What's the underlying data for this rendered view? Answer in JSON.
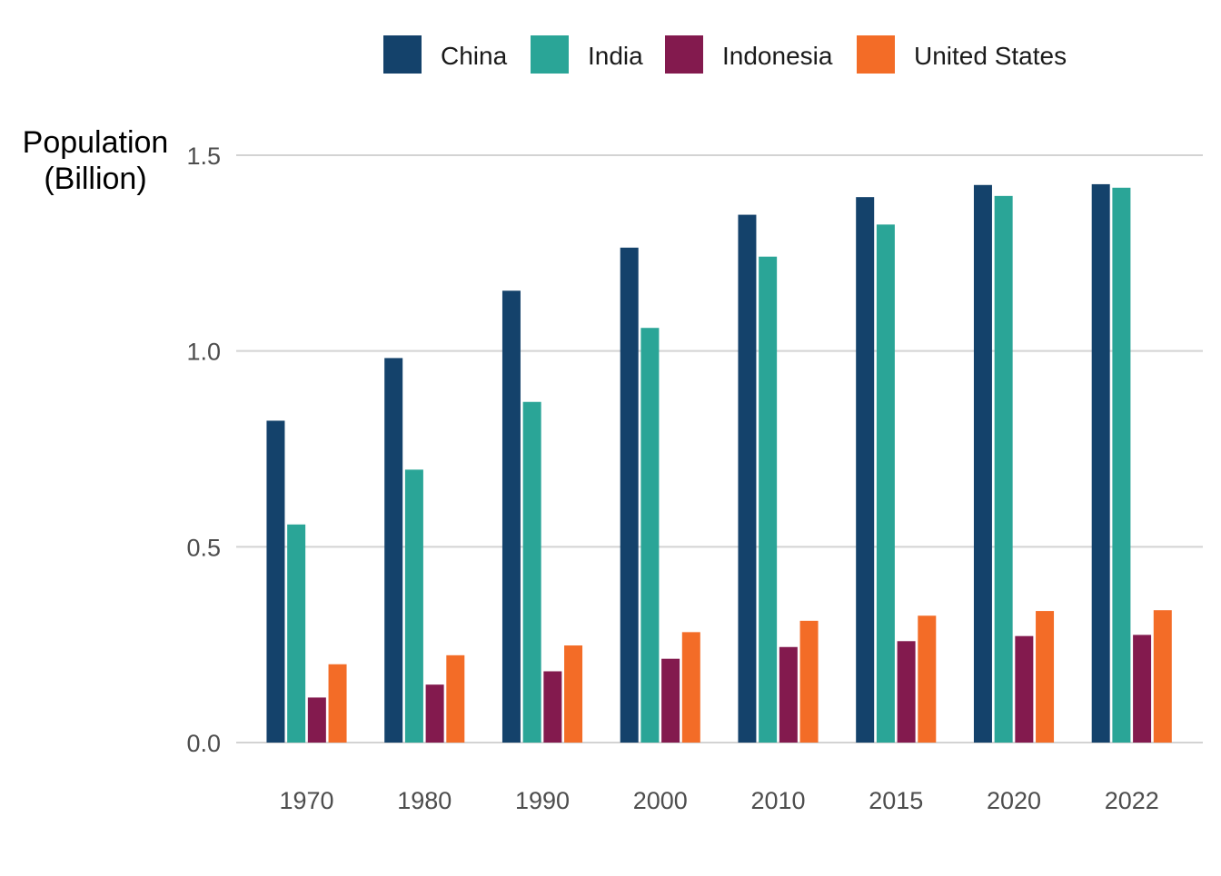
{
  "chart_data": {
    "type": "bar",
    "ylabel": "Population\n(Billion)",
    "xlabel": "",
    "categories": [
      "1970",
      "1980",
      "1990",
      "2000",
      "2010",
      "2015",
      "2020",
      "2022"
    ],
    "series": [
      {
        "name": "China",
        "color": "#14426b",
        "values": [
          0.822,
          0.982,
          1.154,
          1.264,
          1.348,
          1.393,
          1.424,
          1.426
        ]
      },
      {
        "name": "India",
        "color": "#2aa597",
        "values": [
          0.557,
          0.697,
          0.87,
          1.059,
          1.241,
          1.323,
          1.396,
          1.417
        ]
      },
      {
        "name": "Indonesia",
        "color": "#831a4e",
        "values": [
          0.115,
          0.148,
          0.182,
          0.214,
          0.244,
          0.259,
          0.272,
          0.275
        ]
      },
      {
        "name": "United States",
        "color": "#f36c27",
        "values": [
          0.2,
          0.223,
          0.248,
          0.282,
          0.311,
          0.324,
          0.336,
          0.338
        ]
      }
    ],
    "ylim": [
      0,
      1.5
    ],
    "yticks": [
      {
        "value": 0.0,
        "label": "0.0"
      },
      {
        "value": 0.5,
        "label": "0.5"
      },
      {
        "value": 1.0,
        "label": "1.0"
      },
      {
        "value": 1.5,
        "label": "1.5"
      }
    ],
    "grid": "horizontal",
    "legend_position": "top"
  }
}
